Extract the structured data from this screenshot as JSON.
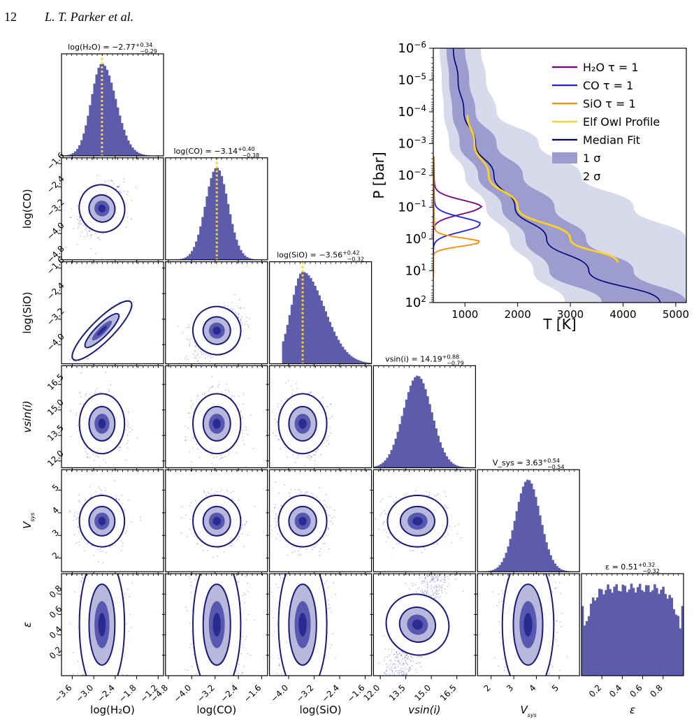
{
  "header": {
    "page_number": "12",
    "authors": "L. T. Parker et al."
  },
  "colors": {
    "fill": "#5c5cab",
    "contour": "#1a1a78",
    "dot": "#2b2bd0",
    "median_line": "#00a0a0",
    "h2o_tau": "#800080",
    "co_tau": "#1f1fff",
    "sio_tau": "#ff8c00",
    "elf_owl": "#ffd21f",
    "median_fit": "#00007a",
    "band_1sigma": "#9c9cce",
    "band_2sigma": "#d9d9ec"
  },
  "chart_data": [
    {
      "type": "scatter",
      "subtype": "corner",
      "parameters": [
        {
          "key": "h2o",
          "label": "log(H₂O)",
          "title": "log(H₂O) = −2.77",
          "err_plus": "+0.34",
          "err_minus": "−0.29",
          "median": -2.77,
          "sd": 0.3,
          "range": [
            -3.9,
            -1.05
          ],
          "ticks": [
            -3.6,
            -3.0,
            -2.4,
            -1.8,
            -1.2
          ],
          "tick_labels": [
            "−3.6",
            "−3.0",
            "−2.4",
            "−1.8",
            "−1.2"
          ],
          "median_line": true
        },
        {
          "key": "co",
          "label": "log(CO)",
          "title": "log(CO) = −3.14",
          "err_plus": "+0.40",
          "err_minus": "−0.38",
          "median": -3.14,
          "sd": 0.39,
          "range": [
            -4.9,
            -1.4
          ],
          "ticks": [
            -4.8,
            -4.0,
            -3.2,
            -2.4,
            -1.6
          ],
          "tick_labels": [
            "−4.8",
            "−4.0",
            "−3.2",
            "−2.4",
            "−1.6"
          ],
          "median_line": true
        },
        {
          "key": "sio",
          "label": "log(SiO)",
          "title": "log(SiO) = −3.56",
          "err_plus": "+0.42",
          "err_minus": "−0.32",
          "median": -3.56,
          "sd": 0.36,
          "range": [
            -4.6,
            -1.4
          ],
          "ticks": [
            -4.8,
            -4.0,
            -3.2,
            -2.4,
            -1.6
          ],
          "tick_labels": [
            "−4.8",
            "−4.0",
            "−3.2",
            "−2.4",
            "−1.6"
          ],
          "median_line": true
        },
        {
          "key": "vsini",
          "label": "vsin(i)",
          "title": "vsin(i) = 14.19",
          "err_plus": "+0.88",
          "err_minus": "−0.79",
          "median": 14.19,
          "sd": 0.84,
          "range": [
            11.6,
            17.6
          ],
          "ticks": [
            12.0,
            13.5,
            15.0,
            16.5
          ],
          "tick_labels": [
            "12.0",
            "13.5",
            "15.0",
            "16.5"
          ],
          "median_line": false
        },
        {
          "key": "vsys",
          "label": "V_sys",
          "title": "V_sys = 3.63",
          "err_plus": "+0.54",
          "err_minus": "−0.54",
          "median": 3.63,
          "sd": 0.54,
          "range": [
            1.4,
            5.9
          ],
          "ticks": [
            2,
            3,
            4,
            5
          ],
          "tick_labels": [
            "2",
            "3",
            "4",
            "5"
          ],
          "median_line": false
        },
        {
          "key": "eps",
          "label": "ε",
          "title": "ε = 0.51",
          "err_plus": "+0.32",
          "err_minus": "−0.32",
          "median": 0.51,
          "sd": 0.3,
          "range": [
            0.0,
            1.0
          ],
          "ticks": [
            0.2,
            0.4,
            0.6,
            0.8
          ],
          "tick_labels": [
            "0.2",
            "0.4",
            "0.6",
            "0.8"
          ],
          "median_line": false
        }
      ],
      "correlations": {
        "co|h2o": 0.35,
        "sio|h2o": 0.9,
        "sio|co": 0.45,
        "eps|vsini": 0.75
      }
    },
    {
      "type": "line",
      "subtype": "pressure-temperature profile",
      "xlabel": "T [K]",
      "ylabel": "P [bar]",
      "x_range": [
        400,
        5200
      ],
      "x_ticks": [
        1000,
        2000,
        3000,
        4000,
        5000
      ],
      "y_log_range": [
        -6,
        2
      ],
      "y_inverted": true,
      "y_tick_labels": [
        {
          "exp": -6,
          "base": "10",
          "sup": "−6"
        },
        {
          "exp": -5,
          "base": "10",
          "sup": "−5"
        },
        {
          "exp": -4,
          "base": "10",
          "sup": "−4"
        },
        {
          "exp": -3,
          "base": "10",
          "sup": "−3"
        },
        {
          "exp": -2,
          "base": "10",
          "sup": "−2"
        },
        {
          "exp": -1,
          "base": "10",
          "sup": "−1"
        },
        {
          "exp": 0,
          "base": "10",
          "sup": "0"
        },
        {
          "exp": 1,
          "base": "10",
          "sup": "1"
        },
        {
          "exp": 2,
          "base": "10",
          "sup": "2"
        }
      ],
      "legend_position": "top-right",
      "legend": [
        {
          "label": "H₂O τ = 1",
          "kind": "line",
          "color_key": "h2o_tau"
        },
        {
          "label": "CO τ = 1",
          "kind": "line",
          "color_key": "co_tau"
        },
        {
          "label": "SiO τ = 1",
          "kind": "line",
          "color_key": "sio_tau"
        },
        {
          "label": "Elf Owl Profile",
          "kind": "line",
          "color_key": "elf_owl"
        },
        {
          "label": "Median Fit",
          "kind": "line",
          "color_key": "median_fit"
        },
        {
          "label": "1 σ",
          "kind": "patch",
          "color_key": "band_1sigma"
        },
        {
          "label": "2 σ",
          "kind": "patch",
          "color_key": "band_2sigma"
        }
      ],
      "log_p": [
        -6,
        -5,
        -4,
        -3,
        -2,
        -1,
        0,
        1,
        2
      ],
      "median_fit_T": [
        780,
        870,
        980,
        1200,
        1550,
        1950,
        2550,
        3350,
        4700
      ],
      "band_1sigma_lo": [
        650,
        700,
        760,
        900,
        1250,
        1700,
        2150,
        2600,
        3600
      ],
      "band_1sigma_hi": [
        1000,
        1080,
        1200,
        1600,
        2100,
        2700,
        3300,
        4200,
        5200
      ],
      "band_2sigma_lo": [
        520,
        560,
        600,
        700,
        1000,
        1400,
        1850,
        2300,
        2900
      ],
      "band_2sigma_hi": [
        1300,
        1400,
        1600,
        2400,
        3200,
        4200,
        5200,
        5200,
        5200
      ],
      "elf_owl": {
        "log_p": [
          -3.9,
          -3.0,
          -2.0,
          -1.0,
          0.0,
          0.75
        ],
        "T": [
          1050,
          1180,
          1450,
          2000,
          3000,
          3900
        ]
      },
      "tau_curves": [
        {
          "name": "H₂O τ = 1",
          "color_key": "h2o_tau",
          "peak_log_p": -1.0,
          "peak_T": 1280
        },
        {
          "name": "CO τ = 1",
          "color_key": "co_tau",
          "peak_log_p": -0.45,
          "peak_T": 1280
        },
        {
          "name": "SiO τ = 1",
          "color_key": "sio_tau",
          "peak_log_p": 0.1,
          "peak_T": 1270
        }
      ]
    }
  ]
}
